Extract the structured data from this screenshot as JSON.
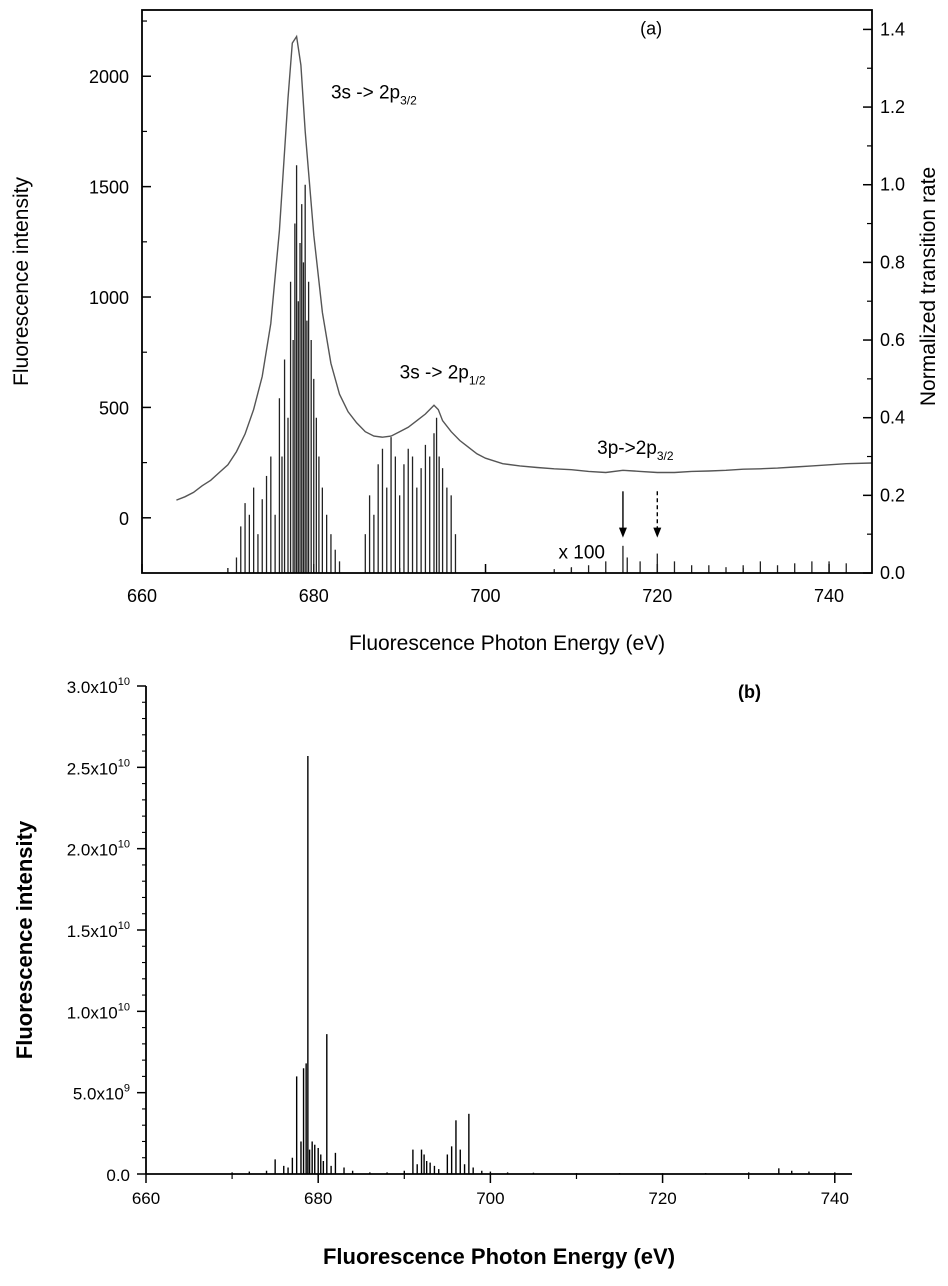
{
  "chart_data": [
    {
      "panel": "(a)",
      "type": "line",
      "xlabel": "Fluorescence Photon Energy (eV)",
      "ylabel": "Fluorescence intensity",
      "ylabel_right": "Normalized transition rate",
      "xlim": [
        660,
        745
      ],
      "ylim": [
        -250,
        2300
      ],
      "ylim_right": [
        0.0,
        1.45
      ],
      "x_ticks": [
        "660",
        "680",
        "700",
        "720",
        "740"
      ],
      "y_ticks": [
        "0",
        "500",
        "1000",
        "1500",
        "2000"
      ],
      "y_ticks_right": [
        "0.0",
        "0.2",
        "0.4",
        "0.6",
        "0.8",
        "1.0",
        "1.2",
        "1.4"
      ],
      "grid": false,
      "annotations": {
        "peak1": {
          "main": "3s -> 2p",
          "sub": "3/2",
          "x": 682,
          "y": 1900
        },
        "peak2": {
          "main": "3s -> 2p",
          "sub": "1/2",
          "x": 690,
          "y": 630
        },
        "peak3": {
          "main": "3p->2p",
          "sub": "3/2",
          "x": 713,
          "y": 290
        },
        "scale": {
          "text": "x 100",
          "x": 708.5,
          "y": -185
        }
      },
      "arrows": [
        {
          "style": "solid",
          "x": 716,
          "y_from": 120,
          "y_to": -90
        },
        {
          "style": "dashed",
          "x": 720,
          "y_from": 120,
          "y_to": -90
        }
      ],
      "series": [
        {
          "axis": "left",
          "style": "line",
          "x": [
            664,
            665,
            666,
            667,
            668,
            669,
            670,
            671,
            672,
            673,
            674,
            675,
            676,
            677,
            677.5,
            678,
            678.5,
            679,
            680,
            681,
            682,
            683,
            684,
            685,
            686,
            687,
            688,
            689,
            690,
            691,
            692,
            693,
            694,
            694.5,
            695,
            696,
            697,
            698,
            699,
            700,
            702,
            704,
            706,
            708,
            710,
            712,
            714,
            716,
            718,
            720,
            722,
            724,
            726,
            728,
            730,
            732,
            734,
            736,
            738,
            740,
            742,
            745
          ],
          "y": [
            80,
            95,
            115,
            145,
            170,
            205,
            240,
            300,
            380,
            490,
            640,
            880,
            1300,
            1900,
            2150,
            2180,
            2050,
            1750,
            1280,
            930,
            700,
            560,
            480,
            430,
            390,
            370,
            365,
            370,
            390,
            410,
            440,
            470,
            510,
            490,
            440,
            390,
            350,
            320,
            290,
            270,
            245,
            235,
            228,
            222,
            218,
            210,
            205,
            215,
            210,
            205,
            205,
            210,
            212,
            215,
            220,
            222,
            225,
            230,
            235,
            240,
            245,
            248
          ]
        },
        {
          "axis": "right",
          "style": "sticks",
          "x": [
            671,
            671.5,
            672,
            672.5,
            673,
            673.5,
            674,
            674.5,
            675,
            675.5,
            676,
            676.3,
            676.6,
            677,
            677.3,
            677.6,
            677.8,
            678,
            678.2,
            678.4,
            678.6,
            678.8,
            679,
            679.2,
            679.4,
            679.7,
            680,
            680.3,
            680.6,
            681,
            681.5,
            682,
            682.5,
            683,
            686,
            686.5,
            687,
            687.5,
            688,
            688.5,
            689,
            689.5,
            690,
            690.5,
            691,
            691.5,
            692,
            692.5,
            693,
            693.5,
            694,
            694.3,
            694.6,
            695,
            695.5,
            696,
            696.5,
            708,
            710,
            712,
            714,
            716,
            716.5,
            718,
            720,
            722,
            724,
            726,
            728,
            730,
            732,
            734,
            736,
            738,
            740,
            742
          ],
          "y": [
            0.04,
            0.12,
            0.18,
            0.15,
            0.22,
            0.1,
            0.19,
            0.25,
            0.3,
            0.15,
            0.45,
            0.3,
            0.55,
            0.4,
            0.75,
            0.6,
            0.9,
            1.05,
            0.7,
            0.85,
            0.95,
            0.8,
            1.0,
            0.65,
            0.75,
            0.6,
            0.5,
            0.4,
            0.3,
            0.22,
            0.15,
            0.1,
            0.06,
            0.03,
            0.1,
            0.2,
            0.15,
            0.28,
            0.32,
            0.22,
            0.35,
            0.3,
            0.2,
            0.28,
            0.32,
            0.3,
            0.22,
            0.27,
            0.33,
            0.3,
            0.36,
            0.4,
            0.3,
            0.27,
            0.22,
            0.2,
            0.1,
            0.01,
            0.015,
            0.02,
            0.03,
            0.07,
            0.04,
            0.03,
            0.05,
            0.03,
            0.02,
            0.02,
            0.015,
            0.02,
            0.03,
            0.02,
            0.025,
            0.03,
            0.03,
            0.025
          ]
        }
      ]
    },
    {
      "panel": "(b)",
      "type": "bar",
      "xlabel": "Fluorescence Photon Energy (eV)",
      "ylabel": "Fluorescence intensity",
      "xlim": [
        660,
        742
      ],
      "ylim": [
        0,
        30000000000.0
      ],
      "x_ticks": [
        "660",
        "680",
        "700",
        "720",
        "740"
      ],
      "y_ticks": [
        {
          "value": 0,
          "label": "0.0",
          "exp": ""
        },
        {
          "value": 5000000000.0,
          "label": "5.0x10",
          "exp": "9"
        },
        {
          "value": 10000000000.0,
          "label": "1.0x10",
          "exp": "10"
        },
        {
          "value": 15000000000.0,
          "label": "1.5x10",
          "exp": "10"
        },
        {
          "value": 20000000000.0,
          "label": "2.0x10",
          "exp": "10"
        },
        {
          "value": 25000000000.0,
          "label": "2.5x10",
          "exp": "10"
        },
        {
          "value": 30000000000.0,
          "label": "3.0x10",
          "exp": "10"
        }
      ],
      "grid": false,
      "series": [
        {
          "x": [
            670,
            672,
            674,
            675,
            676,
            676.5,
            677,
            677.5,
            678,
            678.3,
            678.6,
            678.8,
            679,
            679.3,
            679.6,
            680,
            680.3,
            680.6,
            681,
            681.5,
            682,
            683,
            684,
            686,
            688,
            690,
            691,
            691.5,
            692,
            692.3,
            692.6,
            693,
            693.5,
            694,
            695,
            695.5,
            696,
            696.5,
            697,
            697.5,
            698,
            699,
            700,
            702,
            705,
            710,
            715,
            720,
            725,
            730,
            733.5,
            735,
            737,
            740
          ],
          "y": [
            100000000.0,
            150000000.0,
            200000000.0,
            900000000.0,
            500000000.0,
            400000000.0,
            1000000000.0,
            6000000000.0,
            2000000000.0,
            6500000000.0,
            6800000000.0,
            25700000000.0,
            1500000000.0,
            2000000000.0,
            1800000000.0,
            1600000000.0,
            1200000000.0,
            800000000.0,
            8600000000.0,
            500000000.0,
            1300000000.0,
            400000000.0,
            200000000.0,
            100000000.0,
            100000000.0,
            200000000.0,
            1500000000.0,
            600000000.0,
            1500000000.0,
            1200000000.0,
            800000000.0,
            700000000.0,
            500000000.0,
            300000000.0,
            1200000000.0,
            1700000000.0,
            3300000000.0,
            1500000000.0,
            600000000.0,
            3700000000.0,
            400000000.0,
            200000000.0,
            150000000.0,
            100000000.0,
            80000000.0,
            60000000.0,
            60000000.0,
            50000000.0,
            60000000.0,
            100000000.0,
            350000000.0,
            200000000.0,
            150000000.0,
            100000000.0
          ]
        }
      ]
    }
  ]
}
